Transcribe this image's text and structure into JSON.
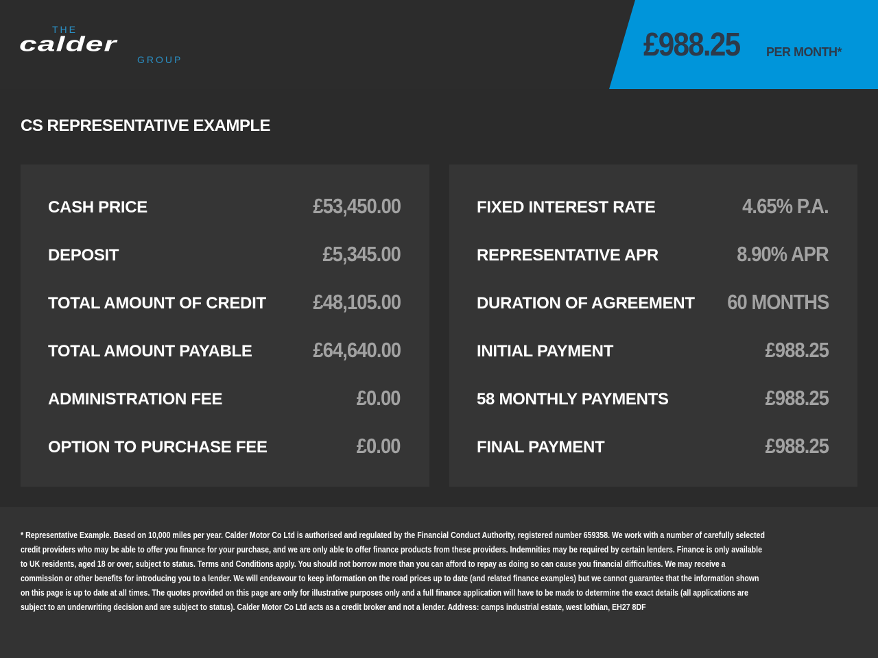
{
  "logo": {
    "the": "THE",
    "name": "calder",
    "group": "GROUP"
  },
  "header": {
    "price": "£988.25",
    "per_month": "PER MONTH*"
  },
  "title": "CS REPRESENTATIVE EXAMPLE",
  "left": [
    {
      "label": "CASH PRICE",
      "value": "£53,450.00"
    },
    {
      "label": "DEPOSIT",
      "value": "£5,345.00"
    },
    {
      "label": "TOTAL AMOUNT OF CREDIT",
      "value": "£48,105.00"
    },
    {
      "label": "TOTAL AMOUNT PAYABLE",
      "value": "£64,640.00"
    },
    {
      "label": "ADMINISTRATION FEE",
      "value": "£0.00"
    },
    {
      "label": "OPTION TO PURCHASE FEE",
      "value": "£0.00"
    }
  ],
  "right": [
    {
      "label": "FIXED INTEREST RATE",
      "value": "4.65% P.A."
    },
    {
      "label": "REPRESENTATIVE APR",
      "value": "8.90% APR"
    },
    {
      "label": "DURATION OF AGREEMENT",
      "value": "60 MONTHS"
    },
    {
      "label": "INITIAL PAYMENT",
      "value": "£988.25"
    },
    {
      "label": "58 MONTHLY PAYMENTS",
      "value": "£988.25"
    },
    {
      "label": "FINAL PAYMENT",
      "value": "£988.25"
    }
  ],
  "disclaimer": "* Representative Example. Based on 10,000 miles per year. Calder Motor Co Ltd is authorised and regulated by the Financial Conduct Authority, registered number 659358. We work with a number of carefully selected credit providers who may be able to offer you finance for your purchase, and we are only able to offer finance products from these providers. Indemnities may be required by certain lenders. Finance is only available to UK residents, aged 18 or over, subject to status. Terms and Conditions apply. You should not borrow more than you can afford to repay as doing so can cause you financial difficulties. We may receive a commission or other benefits for introducing you to a lender. We will endeavour to keep information on the road prices up to date (and related finance examples) but we cannot guarantee that the information shown on this page is up to date at all times. The quotes provided on this page are only for illustrative purposes only and a full finance application will have to be made to determine the exact details (all applications are subject to an underwriting decision and are subject to status). Calder Motor Co Ltd acts as a credit broker and not a lender. Address: camps industrial estate, west lothian, EH27 8DF",
  "colors": {
    "accent": "#0095da",
    "price_text": "#2d3a4a",
    "panel": "#353535",
    "value_text": "#a2a2a2"
  }
}
